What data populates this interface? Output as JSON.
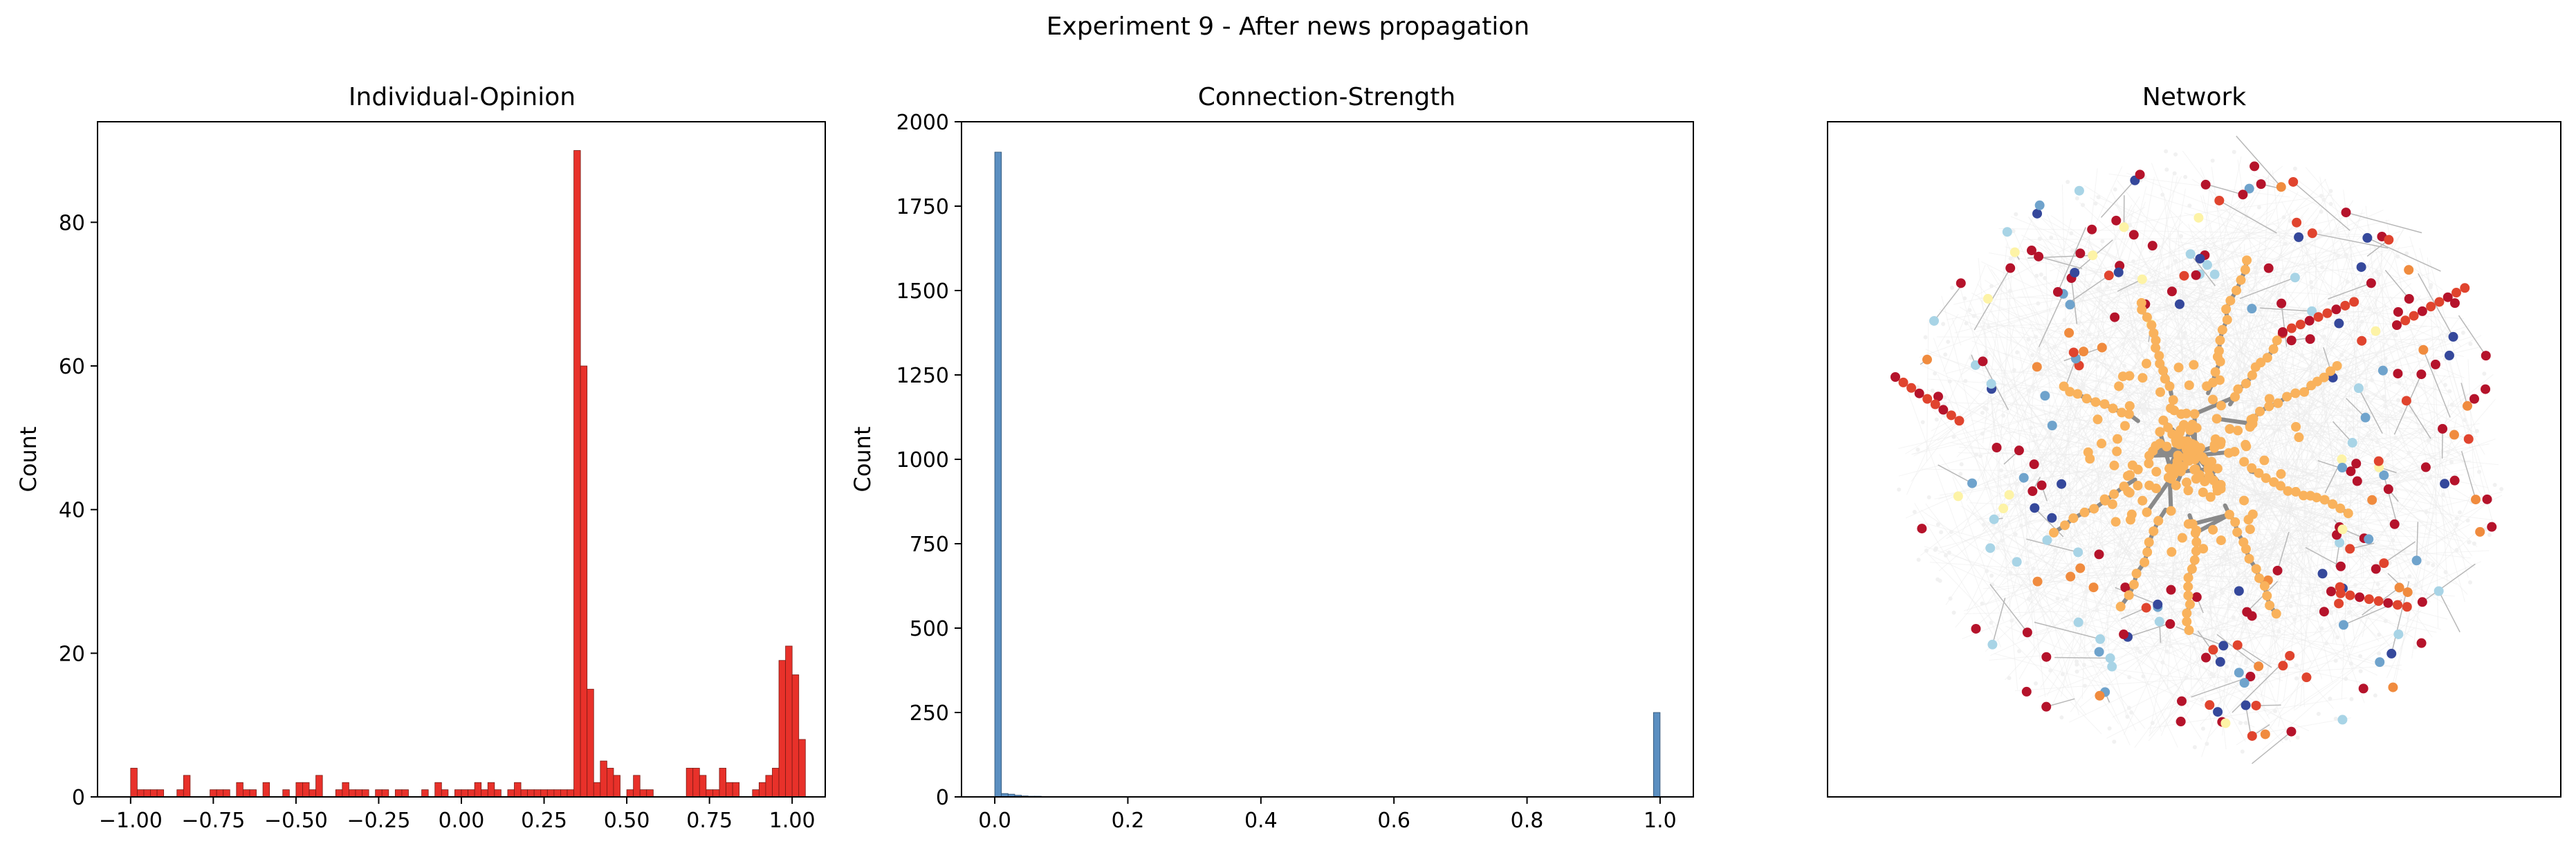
{
  "figure": {
    "suptitle": "Experiment 9 - After news propagation"
  },
  "chart_data": [
    {
      "type": "bar",
      "subtype": "histogram",
      "title": "Individual-Opinion",
      "xlabel": "",
      "ylabel": "Count",
      "xlim": [
        -1.1,
        1.1
      ],
      "ylim": [
        0,
        94
      ],
      "xticks": [
        -1.0,
        -0.75,
        -0.5,
        -0.25,
        0.0,
        0.25,
        0.5,
        0.75,
        1.0
      ],
      "xtick_labels": [
        "−1.00",
        "−0.75",
        "−0.50",
        "−0.25",
        "0.00",
        "0.25",
        "0.50",
        "0.75",
        "1.00"
      ],
      "yticks": [
        0,
        20,
        40,
        60,
        80
      ],
      "ytick_labels": [
        "0",
        "20",
        "40",
        "60",
        "80"
      ],
      "color": "#e8312a",
      "edge_color": "#7a1a14",
      "bins": {
        "start": -1.0,
        "width": 0.02
      },
      "values": [
        4,
        1,
        1,
        1,
        1,
        0,
        0,
        1,
        3,
        0,
        0,
        0,
        1,
        1,
        1,
        0,
        2,
        1,
        1,
        0,
        2,
        0,
        0,
        1,
        0,
        2,
        2,
        1,
        3,
        0,
        0,
        1,
        2,
        1,
        1,
        1,
        0,
        1,
        1,
        0,
        1,
        1,
        0,
        0,
        1,
        0,
        2,
        1,
        0,
        1,
        1,
        1,
        2,
        1,
        2,
        1,
        0,
        1,
        2,
        1,
        1,
        1,
        1,
        1,
        1,
        1,
        1,
        90,
        60,
        15,
        2,
        5,
        4,
        3,
        0,
        1,
        3,
        1,
        1,
        0,
        0,
        0,
        0,
        0,
        4,
        4,
        3,
        1,
        1,
        4,
        2,
        2,
        0,
        0,
        1,
        2,
        3,
        4,
        19,
        21,
        17,
        8
      ]
    },
    {
      "type": "bar",
      "subtype": "histogram",
      "title": "Connection-Strength",
      "xlabel": "",
      "ylabel": "Count",
      "xlim": [
        -0.05,
        1.05
      ],
      "ylim": [
        0,
        2000
      ],
      "xticks": [
        0.0,
        0.2,
        0.4,
        0.6,
        0.8,
        1.0
      ],
      "xtick_labels": [
        "0.0",
        "0.2",
        "0.4",
        "0.6",
        "0.8",
        "1.0"
      ],
      "yticks": [
        0,
        250,
        500,
        750,
        1000,
        1250,
        1500,
        1750,
        2000
      ],
      "ytick_labels": [
        "0",
        "250",
        "500",
        "750",
        "1000",
        "1250",
        "1500",
        "1750",
        "2000"
      ],
      "color": "#5b8fc1",
      "edge_color": "#2c4e70",
      "bins": {
        "start": 0.0,
        "width": 0.01
      },
      "values": [
        1910,
        10,
        8,
        5,
        3,
        2,
        2,
        1,
        1,
        1,
        0,
        1,
        0,
        0,
        0,
        0,
        0,
        0,
        0,
        0,
        0,
        0,
        0,
        0,
        0,
        0,
        0,
        0,
        0,
        0,
        0,
        0,
        0,
        0,
        0,
        0,
        0,
        0,
        0,
        0,
        0,
        0,
        0,
        0,
        0,
        0,
        0,
        0,
        0,
        0,
        0,
        0,
        0,
        0,
        0,
        0,
        0,
        0,
        0,
        0,
        0,
        0,
        0,
        0,
        0,
        0,
        0,
        0,
        0,
        0,
        0,
        0,
        0,
        0,
        0,
        0,
        0,
        0,
        0,
        0,
        0,
        0,
        0,
        0,
        0,
        0,
        0,
        0,
        0,
        0,
        0,
        0,
        0,
        0,
        0,
        0,
        0,
        0,
        0,
        250
      ]
    },
    {
      "type": "scatter",
      "subtype": "network-graph",
      "title": "Network",
      "axes_visible": false,
      "node_colors": {
        "cluster": "#f9b25c",
        "red": "#b5132b",
        "orange_red": "#e0442e",
        "orange": "#f08b3e",
        "yellow": "#fdf3a6",
        "light_blue": "#a8d4e6",
        "mid_blue": "#6fa3cc",
        "dark_blue": "#35489b",
        "edge_gray": "#8a8a8a",
        "cloud_gray": "#ebebeb"
      }
    }
  ]
}
